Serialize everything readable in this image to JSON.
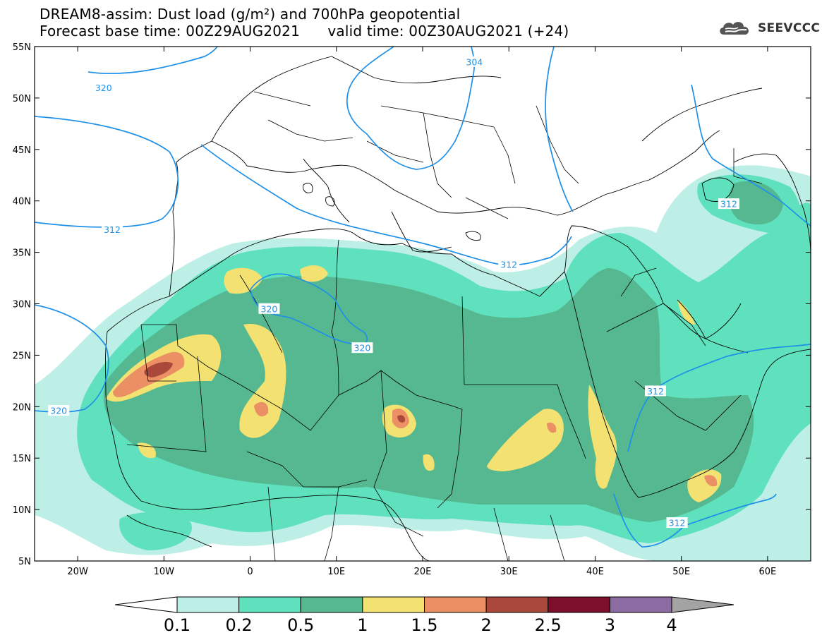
{
  "title_line1": "DREAM8-assim: Dust load (g/m²) and 700hPa geopotential",
  "title_line2": "Forecast base time: 00Z29AUG2021      valid time: 00Z30AUG2021 (+24)",
  "logo_text": "SEEVCCC",
  "map": {
    "lon_range": [
      -25,
      65
    ],
    "lat_range": [
      5,
      55
    ],
    "lat_ticks": [
      {
        "value": 55,
        "label": "55N"
      },
      {
        "value": 50,
        "label": "50N"
      },
      {
        "value": 45,
        "label": "45N"
      },
      {
        "value": 40,
        "label": "40N"
      },
      {
        "value": 35,
        "label": "35N"
      },
      {
        "value": 30,
        "label": "30N"
      },
      {
        "value": 25,
        "label": "25N"
      },
      {
        "value": 20,
        "label": "20N"
      },
      {
        "value": 15,
        "label": "15N"
      },
      {
        "value": 10,
        "label": "10N"
      },
      {
        "value": 5,
        "label": "5N"
      }
    ],
    "lon_ticks": [
      {
        "value": -20,
        "label": "20W"
      },
      {
        "value": -10,
        "label": "10W"
      },
      {
        "value": 0,
        "label": "0"
      },
      {
        "value": 10,
        "label": "10E"
      },
      {
        "value": 20,
        "label": "20E"
      },
      {
        "value": 30,
        "label": "30E"
      },
      {
        "value": 40,
        "label": "40E"
      },
      {
        "value": 50,
        "label": "50E"
      },
      {
        "value": 60,
        "label": "60E"
      }
    ],
    "geopotential_labels": [
      {
        "text": "320",
        "lon": -17,
        "lat": 51.0
      },
      {
        "text": "304",
        "lon": 26.0,
        "lat": 53.5
      },
      {
        "text": "312",
        "lon": -16,
        "lat": 37.2
      },
      {
        "text": "312",
        "lon": 30.0,
        "lat": 33.8
      },
      {
        "text": "320",
        "lon": 2.2,
        "lat": 29.5
      },
      {
        "text": "320",
        "lon": 13.0,
        "lat": 25.7
      },
      {
        "text": "320",
        "lon": -22.2,
        "lat": 19.6
      },
      {
        "text": "312",
        "lon": 47.0,
        "lat": 21.5
      },
      {
        "text": "312",
        "lon": 55.5,
        "lat": 39.7
      },
      {
        "text": "312",
        "lon": 49.5,
        "lat": 8.7
      }
    ]
  },
  "colorbar": {
    "levels": [
      "0.1",
      "0.2",
      "0.5",
      "1",
      "1.5",
      "2",
      "2.5",
      "3",
      "4"
    ],
    "colors": [
      "#ffffff",
      "#bdefe6",
      "#5fe1be",
      "#55b891",
      "#f3e272",
      "#eb8f64",
      "#a9483b",
      "#7b0f2c",
      "#8c6aa2",
      "#a3a3a3"
    ]
  }
}
